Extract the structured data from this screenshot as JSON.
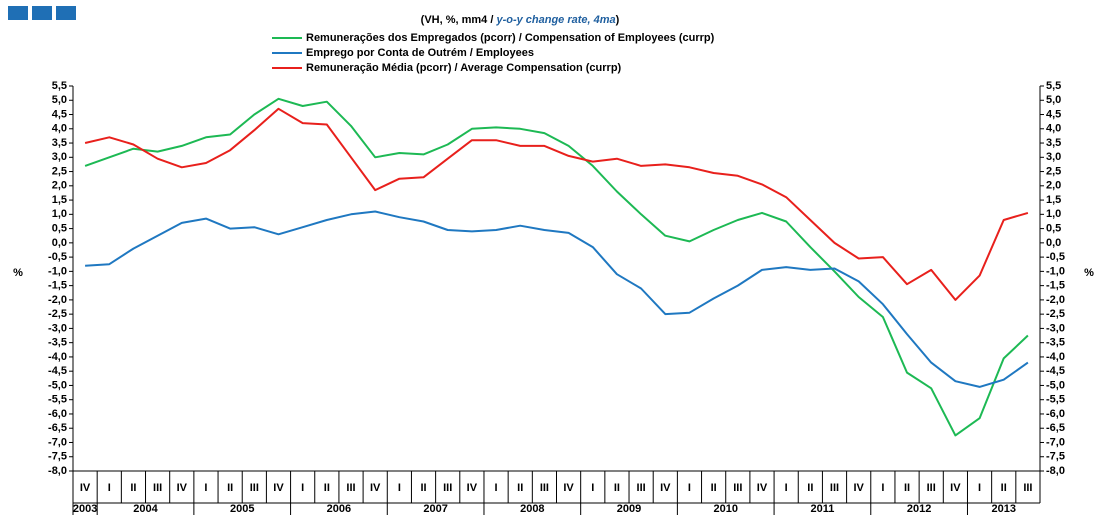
{
  "chart_data": {
    "type": "line",
    "title_parts": [
      "(VH, %, mm4 / ",
      "y-o-y change rate, 4ma",
      ")"
    ],
    "ylabel": "%",
    "y2label": "%",
    "categories": [
      "IV",
      "I",
      "II",
      "III",
      "IV",
      "I",
      "II",
      "III",
      "IV",
      "I",
      "II",
      "III",
      "IV",
      "I",
      "II",
      "III",
      "IV",
      "I",
      "II",
      "III",
      "IV",
      "I",
      "II",
      "III",
      "IV",
      "I",
      "II",
      "III",
      "IV",
      "I",
      "II",
      "III",
      "IV",
      "I",
      "II",
      "III",
      "IV",
      "I",
      "II",
      "III"
    ],
    "years": [
      "2003",
      "2004",
      "2005",
      "2006",
      "2007",
      "2008",
      "2009",
      "2010",
      "2011",
      "2012",
      "2013"
    ],
    "series": [
      {
        "name": "Remunerações dos Empregados (pcorr) / Compensation of Employees (currp)",
        "color": "#1db954",
        "values": [
          2.7,
          3.0,
          3.3,
          3.2,
          3.4,
          3.7,
          3.8,
          4.5,
          5.05,
          4.8,
          4.95,
          4.1,
          3.0,
          3.15,
          3.1,
          3.45,
          4.0,
          4.05,
          4.0,
          3.85,
          3.4,
          2.7,
          1.8,
          1.0,
          0.25,
          0.05,
          0.45,
          0.8,
          1.05,
          0.75,
          -0.15,
          -1.0,
          -1.9,
          -2.6,
          -4.55,
          -5.1,
          -6.75,
          -6.15,
          -4.05,
          -3.25
        ]
      },
      {
        "name": "Emprego por Conta de Outrém / Employees",
        "color": "#1f78c1",
        "values": [
          -0.8,
          -0.75,
          -0.2,
          0.25,
          0.7,
          0.85,
          0.5,
          0.55,
          0.3,
          0.55,
          0.8,
          1.0,
          1.1,
          0.9,
          0.75,
          0.45,
          0.4,
          0.45,
          0.6,
          0.45,
          0.35,
          -0.15,
          -1.1,
          -1.6,
          -2.5,
          -2.45,
          -1.95,
          -1.5,
          -0.95,
          -0.85,
          -0.95,
          -0.9,
          -1.35,
          -2.15,
          -3.2,
          -4.2,
          -4.85,
          -5.05,
          -4.8,
          -4.2
        ]
      },
      {
        "name": "Remuneração Média (pcorr) / Average Compensation (currp)",
        "color": "#e8201c",
        "values": [
          3.5,
          3.7,
          3.45,
          2.95,
          2.65,
          2.8,
          3.25,
          3.95,
          4.7,
          4.2,
          4.15,
          3.0,
          1.85,
          2.25,
          2.3,
          2.95,
          3.6,
          3.6,
          3.4,
          3.4,
          3.05,
          2.85,
          2.95,
          2.7,
          2.75,
          2.65,
          2.45,
          2.35,
          2.05,
          1.6,
          0.8,
          0.0,
          -0.55,
          -0.5,
          -1.45,
          -0.95,
          -2.0,
          -1.15,
          0.8,
          1.05
        ]
      }
    ],
    "ylim": [
      -8,
      5.5
    ],
    "yticks": [
      {
        "value": 5.5,
        "label": "5,5"
      },
      {
        "value": 5,
        "label": "5,0"
      },
      {
        "value": 4.5,
        "label": "4,5"
      },
      {
        "value": 4,
        "label": "4,0"
      },
      {
        "value": 3.5,
        "label": "3,5"
      },
      {
        "value": 3,
        "label": "3,0"
      },
      {
        "value": 2.5,
        "label": "2,5"
      },
      {
        "value": 2,
        "label": "2,0"
      },
      {
        "value": 1.5,
        "label": "1,5"
      },
      {
        "value": 1,
        "label": "1,0"
      },
      {
        "value": 0.5,
        "label": "0,5"
      },
      {
        "value": 0,
        "label": "0,0"
      },
      {
        "value": -0.5,
        "label": "-0,5"
      },
      {
        "value": -1,
        "label": "-1,0"
      },
      {
        "value": -1.5,
        "label": "-1,5"
      },
      {
        "value": -2,
        "label": "-2,0"
      },
      {
        "value": -2.5,
        "label": "-2,5"
      },
      {
        "value": -3,
        "label": "-3,0"
      },
      {
        "value": -3.5,
        "label": "-3,5"
      },
      {
        "value": -4,
        "label": "-4,0"
      },
      {
        "value": -4.5,
        "label": "-4,5"
      },
      {
        "value": -5,
        "label": "-5,0"
      },
      {
        "value": -5.5,
        "label": "-5,5"
      },
      {
        "value": -6,
        "label": "-6,0"
      },
      {
        "value": -6.5,
        "label": "-6,5"
      },
      {
        "value": -7,
        "label": "-7,0"
      },
      {
        "value": -7.5,
        "label": "-7,5"
      },
      {
        "value": -8,
        "label": "-8,0"
      }
    ],
    "grid": false
  }
}
